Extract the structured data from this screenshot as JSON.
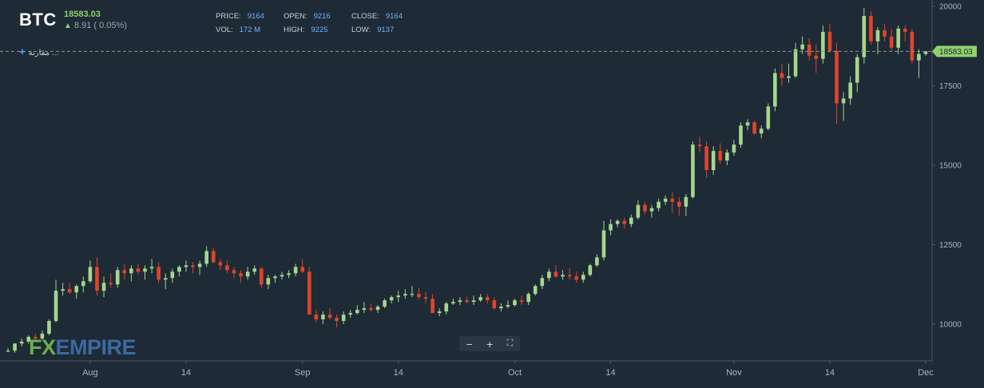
{
  "header": {
    "symbol": "BTC",
    "last_price": "18583.03",
    "change": "8.91 ( 0.05%)",
    "price_label": "PRICE:",
    "price_value": "9164",
    "vol_label": "VOL:",
    "vol_value": "172 M",
    "open_label": "OPEN:",
    "open_value": "9216",
    "high_label": "HIGH:",
    "high_value": "9225",
    "close_label": "CLOSE:",
    "close_value": "9164",
    "low_label": "LOW:",
    "low_value": "9137",
    "compare_label": "مقارنة ..."
  },
  "logo": {
    "fx": "FX",
    "empire": "EMPIRE"
  },
  "toolbar": {
    "zoom_out": "−",
    "zoom_in": "+",
    "fullscreen": "⛶"
  },
  "colors": {
    "up": "#a6d68b",
    "down": "#e0442b",
    "background": "#1e2a36",
    "price_line": "#8fd16b"
  },
  "chart_data": {
    "type": "candlestick",
    "title": "",
    "xlabel": "",
    "ylabel": "",
    "ylim": [
      8900,
      20100
    ],
    "yticks": [
      10000,
      12500,
      15000,
      17500,
      20000
    ],
    "xtick_labels": [
      "Aug",
      "14",
      "Sep",
      "14",
      "Oct",
      "14",
      "Nov",
      "14",
      "Dec"
    ],
    "last_price_label": "18583.03",
    "last_price": 18583.03,
    "grid": false,
    "series": [
      {
        "ohlc": [
          [
            9150,
            9250,
            9120,
            9164
          ],
          [
            9164,
            9400,
            9100,
            9390
          ],
          [
            9390,
            9550,
            9300,
            9450
          ],
          [
            9450,
            9650,
            9380,
            9600
          ],
          [
            9600,
            9700,
            9450,
            9550
          ],
          [
            9550,
            9800,
            9500,
            9700
          ],
          [
            9700,
            10150,
            9650,
            10100
          ],
          [
            10100,
            11400,
            10050,
            11050
          ],
          [
            11050,
            11300,
            10900,
            11100
          ],
          [
            11100,
            11300,
            10950,
            11000
          ],
          [
            11000,
            11250,
            10800,
            11200
          ],
          [
            11200,
            11500,
            11000,
            11350
          ],
          [
            11350,
            12000,
            11300,
            11800
          ],
          [
            11800,
            12100,
            10900,
            11050
          ],
          [
            11050,
            11500,
            10850,
            11300
          ],
          [
            11300,
            11600,
            11150,
            11250
          ],
          [
            11250,
            11800,
            11150,
            11700
          ],
          [
            11700,
            11900,
            11400,
            11600
          ],
          [
            11600,
            11850,
            11350,
            11750
          ],
          [
            11750,
            11900,
            11550,
            11650
          ],
          [
            11650,
            11850,
            11400,
            11750
          ],
          [
            11750,
            12050,
            11600,
            11800
          ],
          [
            11800,
            11950,
            11300,
            11400
          ],
          [
            11400,
            11600,
            11100,
            11450
          ],
          [
            11450,
            11750,
            11300,
            11650
          ],
          [
            11650,
            11850,
            11500,
            11800
          ],
          [
            11800,
            12000,
            11650,
            11850
          ],
          [
            11850,
            11950,
            11600,
            11800
          ],
          [
            11800,
            12000,
            11550,
            11900
          ],
          [
            11900,
            12450,
            11800,
            12300
          ],
          [
            12300,
            12400,
            11900,
            11950
          ],
          [
            11950,
            12050,
            11700,
            11850
          ],
          [
            11850,
            12000,
            11600,
            11700
          ],
          [
            11700,
            11800,
            11450,
            11600
          ],
          [
            11600,
            11700,
            11300,
            11500
          ],
          [
            11500,
            11800,
            11400,
            11650
          ],
          [
            11650,
            11850,
            11550,
            11750
          ],
          [
            11750,
            11800,
            11150,
            11250
          ],
          [
            11250,
            11550,
            11100,
            11450
          ],
          [
            11450,
            11550,
            11300,
            11500
          ],
          [
            11500,
            11650,
            11400,
            11550
          ],
          [
            11550,
            11700,
            11450,
            11600
          ],
          [
            11600,
            11900,
            11500,
            11800
          ],
          [
            11800,
            12050,
            11600,
            11650
          ],
          [
            11650,
            11800,
            10300,
            10300
          ],
          [
            10300,
            10450,
            10050,
            10150
          ],
          [
            10150,
            10400,
            10000,
            10300
          ],
          [
            10300,
            10500,
            10150,
            10200
          ],
          [
            10200,
            10300,
            9900,
            10100
          ],
          [
            10100,
            10400,
            10000,
            10300
          ],
          [
            10300,
            10450,
            10200,
            10350
          ],
          [
            10350,
            10600,
            10300,
            10450
          ],
          [
            10450,
            10700,
            10350,
            10500
          ],
          [
            10500,
            10650,
            10400,
            10450
          ],
          [
            10450,
            10600,
            10350,
            10550
          ],
          [
            10550,
            10800,
            10500,
            10750
          ],
          [
            10750,
            10900,
            10650,
            10850
          ],
          [
            10850,
            11050,
            10700,
            10900
          ],
          [
            10900,
            11100,
            10800,
            10950
          ],
          [
            10950,
            11200,
            10850,
            10950
          ],
          [
            10950,
            11150,
            10800,
            10850
          ],
          [
            10850,
            11000,
            10650,
            10800
          ],
          [
            10800,
            10950,
            10350,
            10350
          ],
          [
            10350,
            10500,
            10250,
            10400
          ],
          [
            10400,
            10700,
            10300,
            10650
          ],
          [
            10650,
            10800,
            10600,
            10700
          ],
          [
            10700,
            10850,
            10600,
            10750
          ],
          [
            10750,
            10850,
            10650,
            10700
          ],
          [
            10700,
            10900,
            10600,
            10750
          ],
          [
            10750,
            10950,
            10700,
            10850
          ],
          [
            10850,
            10950,
            10650,
            10750
          ],
          [
            10750,
            10850,
            10450,
            10500
          ],
          [
            10500,
            10650,
            10400,
            10550
          ],
          [
            10550,
            10750,
            10500,
            10600
          ],
          [
            10600,
            10800,
            10550,
            10750
          ],
          [
            10750,
            10900,
            10600,
            10700
          ],
          [
            10700,
            11000,
            10600,
            10950
          ],
          [
            10950,
            11250,
            10900,
            11200
          ],
          [
            11200,
            11550,
            11100,
            11450
          ],
          [
            11450,
            11750,
            11350,
            11650
          ],
          [
            11650,
            11850,
            11450,
            11500
          ],
          [
            11500,
            11700,
            11400,
            11550
          ],
          [
            11550,
            11750,
            11400,
            11500
          ],
          [
            11500,
            11650,
            11300,
            11400
          ],
          [
            11400,
            11650,
            11300,
            11550
          ],
          [
            11550,
            11900,
            11500,
            11850
          ],
          [
            11850,
            12200,
            11800,
            12100
          ],
          [
            12100,
            13250,
            12000,
            12950
          ],
          [
            12950,
            13300,
            12800,
            13150
          ],
          [
            13150,
            13300,
            13050,
            13250
          ],
          [
            13250,
            13350,
            13000,
            13150
          ],
          [
            13150,
            13450,
            13050,
            13350
          ],
          [
            13350,
            13900,
            13300,
            13750
          ],
          [
            13750,
            13850,
            13450,
            13550
          ],
          [
            13550,
            13750,
            13350,
            13650
          ],
          [
            13650,
            13950,
            13550,
            13850
          ],
          [
            13850,
            14050,
            13750,
            13950
          ],
          [
            13950,
            14150,
            13500,
            13850
          ],
          [
            13850,
            14000,
            13400,
            13700
          ],
          [
            13700,
            14100,
            13400,
            14000
          ],
          [
            14000,
            15750,
            13950,
            15650
          ],
          [
            15650,
            15900,
            15400,
            15600
          ],
          [
            15600,
            15750,
            14600,
            14850
          ],
          [
            14850,
            15600,
            14700,
            15450
          ],
          [
            15450,
            15700,
            15050,
            15150
          ],
          [
            15150,
            15500,
            15000,
            15400
          ],
          [
            15400,
            15800,
            15300,
            15650
          ],
          [
            15650,
            16350,
            15550,
            16250
          ],
          [
            16250,
            16450,
            16100,
            16350
          ],
          [
            16350,
            16400,
            15950,
            16000
          ],
          [
            16000,
            16250,
            15850,
            16150
          ],
          [
            16150,
            16950,
            16100,
            16850
          ],
          [
            16850,
            18050,
            16700,
            17900
          ],
          [
            17900,
            18200,
            17500,
            17750
          ],
          [
            17750,
            18200,
            17600,
            17800
          ],
          [
            17800,
            18850,
            17750,
            18650
          ],
          [
            18650,
            19050,
            18500,
            18800
          ],
          [
            18800,
            19000,
            18300,
            18450
          ],
          [
            18450,
            18800,
            17900,
            18350
          ],
          [
            18350,
            19400,
            18200,
            19200
          ],
          [
            19200,
            19450,
            18550,
            18600
          ],
          [
            18600,
            18850,
            16300,
            16950
          ],
          [
            16950,
            17300,
            16400,
            17100
          ],
          [
            17100,
            17800,
            16900,
            17600
          ],
          [
            17600,
            18500,
            17300,
            18400
          ],
          [
            18400,
            19950,
            18200,
            19700
          ],
          [
            19700,
            19850,
            18800,
            18900
          ],
          [
            18900,
            19350,
            18500,
            19250
          ],
          [
            19250,
            19450,
            18900,
            19050
          ],
          [
            19050,
            19300,
            18600,
            18700
          ],
          [
            18700,
            19400,
            18500,
            19300
          ],
          [
            19300,
            19400,
            18900,
            19200
          ],
          [
            19200,
            19300,
            18200,
            18300
          ],
          [
            18300,
            18650,
            17750,
            18500
          ],
          [
            18500,
            18600,
            18450,
            18583
          ]
        ]
      }
    ]
  }
}
